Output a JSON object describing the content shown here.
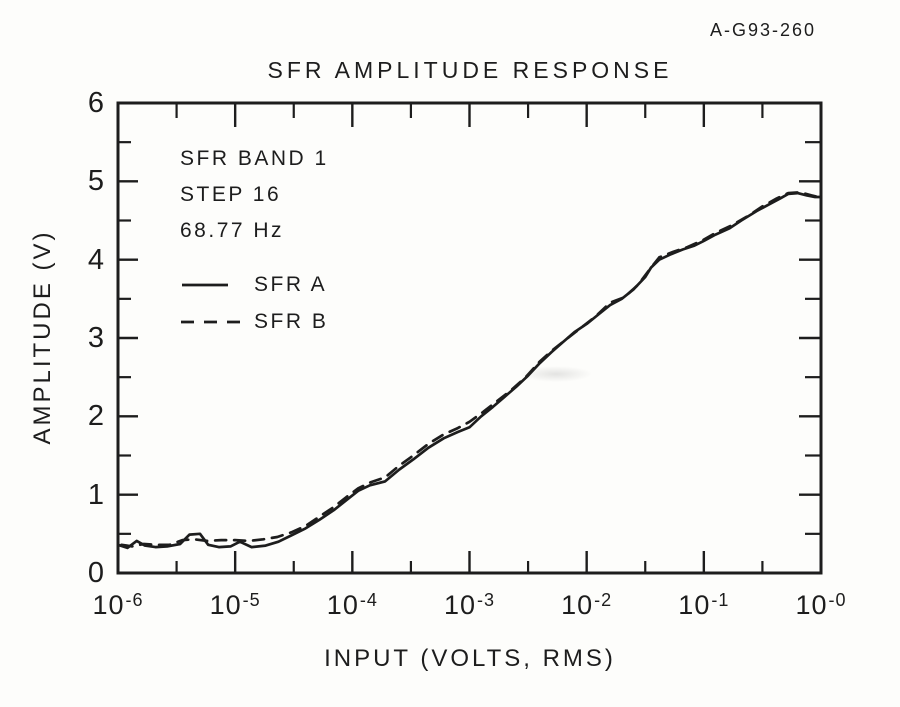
{
  "figure": {
    "ref_number": "A-G93-260",
    "background": "#fdfdfb",
    "ink_color": "#1d1d1d"
  },
  "chart_data": {
    "type": "line",
    "title": "SFR AMPLITUDE RESPONSE",
    "xlabel": "INPUT (VOLTS, RMS)",
    "ylabel": "AMPLITUDE (V)",
    "x_scale": "log",
    "xlim_log10": [
      -6,
      0
    ],
    "ylim": [
      0,
      6
    ],
    "grid": false,
    "x_tick_base": "10",
    "x_tick_exponents": [
      "-6",
      "-5",
      "-4",
      "-3",
      "-2",
      "-1",
      "-0"
    ],
    "x_minor_ticks_log10": [
      -5.5,
      -4.5,
      -3.5,
      -2.5,
      -1.5,
      -0.5
    ],
    "y_ticks": [
      0,
      1,
      2,
      3,
      4,
      5,
      6
    ],
    "y_minor_ticks": [
      0.5,
      1.5,
      2.5,
      3.5,
      4.5,
      5.5
    ],
    "annotation_lines": [
      "SFR BAND 1",
      "STEP 16",
      "68.77 Hz"
    ],
    "legend": {
      "position": "upper-left-inside",
      "entries": [
        {
          "name": "SFR A",
          "style": "solid"
        },
        {
          "name": "SFR B",
          "style": "dashed"
        }
      ]
    },
    "series": [
      {
        "name": "SFR A",
        "style": "solid",
        "points_log10x_volts": [
          [
            -6.0,
            0.36
          ],
          [
            -5.92,
            0.32
          ],
          [
            -5.84,
            0.41
          ],
          [
            -5.77,
            0.35
          ],
          [
            -5.68,
            0.33
          ],
          [
            -5.58,
            0.34
          ],
          [
            -5.47,
            0.37
          ],
          [
            -5.39,
            0.49
          ],
          [
            -5.3,
            0.5
          ],
          [
            -5.23,
            0.36
          ],
          [
            -5.14,
            0.33
          ],
          [
            -5.04,
            0.34
          ],
          [
            -4.96,
            0.4
          ],
          [
            -4.86,
            0.33
          ],
          [
            -4.74,
            0.35
          ],
          [
            -4.63,
            0.4
          ],
          [
            -4.52,
            0.48
          ],
          [
            -4.4,
            0.57
          ],
          [
            -4.28,
            0.68
          ],
          [
            -4.16,
            0.8
          ],
          [
            -4.05,
            0.93
          ],
          [
            -3.95,
            1.05
          ],
          [
            -3.85,
            1.12
          ],
          [
            -3.72,
            1.17
          ],
          [
            -3.6,
            1.32
          ],
          [
            -3.48,
            1.45
          ],
          [
            -3.35,
            1.6
          ],
          [
            -3.22,
            1.72
          ],
          [
            -3.1,
            1.8
          ],
          [
            -3.0,
            1.86
          ],
          [
            -2.9,
            2.0
          ],
          [
            -2.8,
            2.12
          ],
          [
            -2.7,
            2.25
          ],
          [
            -2.6,
            2.38
          ],
          [
            -2.5,
            2.52
          ],
          [
            -2.4,
            2.68
          ],
          [
            -2.3,
            2.82
          ],
          [
            -2.2,
            2.95
          ],
          [
            -2.1,
            3.08
          ],
          [
            -2.0,
            3.18
          ],
          [
            -1.9,
            3.3
          ],
          [
            -1.8,
            3.42
          ],
          [
            -1.7,
            3.5
          ],
          [
            -1.6,
            3.62
          ],
          [
            -1.5,
            3.78
          ],
          [
            -1.45,
            3.9
          ],
          [
            -1.38,
            4.0
          ],
          [
            -1.28,
            4.07
          ],
          [
            -1.18,
            4.13
          ],
          [
            -1.08,
            4.18
          ],
          [
            -1.0,
            4.24
          ],
          [
            -0.9,
            4.32
          ],
          [
            -0.78,
            4.4
          ],
          [
            -0.68,
            4.5
          ],
          [
            -0.55,
            4.62
          ],
          [
            -0.45,
            4.7
          ],
          [
            -0.35,
            4.78
          ],
          [
            -0.28,
            4.84
          ],
          [
            -0.2,
            4.85
          ],
          [
            -0.12,
            4.82
          ],
          [
            -0.05,
            4.8
          ],
          [
            0.0,
            4.8
          ]
        ]
      },
      {
        "name": "SFR B",
        "style": "dashed",
        "points_log10x_volts": [
          [
            -5.97,
            0.36
          ],
          [
            -5.88,
            0.34
          ],
          [
            -5.78,
            0.37
          ],
          [
            -5.68,
            0.36
          ],
          [
            -5.56,
            0.36
          ],
          [
            -5.45,
            0.42
          ],
          [
            -5.35,
            0.43
          ],
          [
            -5.24,
            0.41
          ],
          [
            -5.12,
            0.42
          ],
          [
            -5.0,
            0.42
          ],
          [
            -4.88,
            0.41
          ],
          [
            -4.76,
            0.43
          ],
          [
            -4.64,
            0.46
          ],
          [
            -4.52,
            0.52
          ],
          [
            -4.4,
            0.6
          ],
          [
            -4.28,
            0.72
          ],
          [
            -4.16,
            0.84
          ],
          [
            -4.05,
            0.97
          ],
          [
            -3.95,
            1.08
          ],
          [
            -3.84,
            1.16
          ],
          [
            -3.72,
            1.22
          ],
          [
            -3.6,
            1.37
          ],
          [
            -3.48,
            1.5
          ],
          [
            -3.35,
            1.65
          ],
          [
            -3.22,
            1.77
          ],
          [
            -3.1,
            1.85
          ],
          [
            -3.0,
            1.93
          ],
          [
            -2.88,
            2.06
          ],
          [
            -2.76,
            2.2
          ],
          [
            -2.64,
            2.34
          ],
          [
            -2.52,
            2.5
          ],
          [
            -2.4,
            2.7
          ],
          [
            -2.28,
            2.86
          ],
          [
            -2.16,
            3.0
          ],
          [
            -2.04,
            3.14
          ],
          [
            -1.92,
            3.28
          ],
          [
            -1.8,
            3.45
          ],
          [
            -1.68,
            3.52
          ],
          [
            -1.56,
            3.68
          ],
          [
            -1.46,
            3.88
          ],
          [
            -1.38,
            4.03
          ],
          [
            -1.26,
            4.1
          ],
          [
            -1.14,
            4.16
          ],
          [
            -1.02,
            4.24
          ],
          [
            -0.9,
            4.34
          ],
          [
            -0.76,
            4.44
          ],
          [
            -0.62,
            4.56
          ],
          [
            -0.5,
            4.68
          ],
          [
            -0.38,
            4.78
          ],
          [
            -0.28,
            4.85
          ],
          [
            -0.18,
            4.86
          ],
          [
            -0.08,
            4.82
          ],
          [
            0.0,
            4.79
          ]
        ]
      }
    ]
  }
}
